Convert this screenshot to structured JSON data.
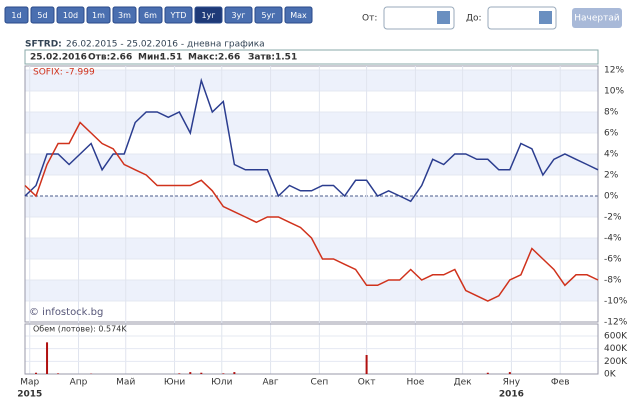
{
  "toolbar": {
    "ranges": [
      "1d",
      "5d",
      "10d",
      "1m",
      "3m",
      "6m",
      "YTD",
      "1уг",
      "3уг",
      "5уг",
      "Мах"
    ],
    "active": "1уг",
    "from_label": "От:",
    "to_label": "До:",
    "submit": "Начертай"
  },
  "header": {
    "symbol": "SFTRD:",
    "period": "26.02.2015 - 25.02.2016 - дневна графика",
    "date": "25.02.2016",
    "open_label": "Отв:",
    "open": "2.66",
    "min_label": "Мин:",
    "min": "1.51",
    "max_label": "Макс:",
    "max": "2.66",
    "close_label": "Затв:",
    "close": "1.51"
  },
  "watermark": "© infostock.bg",
  "chart_data": {
    "type": "line",
    "x": [
      "26.02.2015",
      "05.03.2015",
      "12.03.2015",
      "19.03.2015",
      "26.03.2015",
      "02.04.2015",
      "09.04.2015",
      "16.04.2015",
      "23.04.2015",
      "30.04.2015",
      "07.05.2015",
      "14.05.2015",
      "21.05.2015",
      "28.05.2015",
      "04.06.2015",
      "11.06.2015",
      "18.06.2015",
      "25.06.2015",
      "02.07.2015",
      "09.07.2015",
      "16.07.2015",
      "23.07.2015",
      "30.07.2015",
      "06.08.2015",
      "13.08.2015",
      "20.08.2015",
      "27.08.2015",
      "03.09.2015",
      "10.09.2015",
      "17.09.2015",
      "24.09.2015",
      "01.10.2015",
      "08.10.2015",
      "15.10.2015",
      "22.10.2015",
      "29.10.2015",
      "05.11.2015",
      "12.11.2015",
      "19.11.2015",
      "26.11.2015",
      "03.12.2015",
      "10.12.2015",
      "17.12.2015",
      "24.12.2015",
      "31.12.2015",
      "07.01.2016",
      "14.01.2016",
      "21.01.2016",
      "28.01.2016",
      "04.02.2016",
      "11.02.2016",
      "18.02.2016",
      "25.02.2016"
    ],
    "xlim": [
      "26.02.2015",
      "25.02.2016"
    ],
    "xticks": [
      {
        "value": "01.03.2015",
        "label": "Мар"
      },
      {
        "value": "01.04.2015",
        "label": "Апр"
      },
      {
        "value": "01.05.2015",
        "label": "Май"
      },
      {
        "value": "01.06.2015",
        "label": "Юни"
      },
      {
        "value": "01.07.2015",
        "label": "Юли"
      },
      {
        "value": "01.08.2015",
        "label": "Авг"
      },
      {
        "value": "01.09.2015",
        "label": "Сеп"
      },
      {
        "value": "01.10.2015",
        "label": "Окт"
      },
      {
        "value": "01.11.2015",
        "label": "Ное"
      },
      {
        "value": "01.12.2015",
        "label": "Дек"
      },
      {
        "value": "01.01.2016",
        "label": "Яну"
      },
      {
        "value": "01.02.2016",
        "label": "Фев"
      }
    ],
    "year_ticks": [
      {
        "value": "01.03.2015",
        "label": "2015"
      },
      {
        "value": "01.01.2016",
        "label": "2016"
      }
    ],
    "ylim": [
      -12,
      12
    ],
    "yticks": [
      {
        "value": 12,
        "label": "12%"
      },
      {
        "value": 10,
        "label": "10%"
      },
      {
        "value": 8,
        "label": "8%"
      },
      {
        "value": 6,
        "label": "6%"
      },
      {
        "value": 4,
        "label": "4%"
      },
      {
        "value": 2,
        "label": "2%"
      },
      {
        "value": 0,
        "label": "0%"
      },
      {
        "value": -2,
        "label": "-2%"
      },
      {
        "value": -4,
        "label": "-4%"
      },
      {
        "value": -6,
        "label": "-6%"
      },
      {
        "value": -8,
        "label": "-8%"
      },
      {
        "value": -10,
        "label": "-10%"
      },
      {
        "value": -12,
        "label": "-12%"
      }
    ],
    "series": [
      {
        "color": "#2b3d8f",
        "values": [
          0,
          1,
          4,
          4,
          3,
          4,
          5,
          2.5,
          4,
          4,
          7,
          8,
          8,
          7.5,
          8,
          6,
          11,
          8,
          9,
          3,
          2.5,
          2.5,
          2.5,
          0,
          1,
          0.5,
          0.5,
          1,
          1,
          0,
          1.5,
          1.5,
          0,
          0.5,
          0,
          -0.5,
          1,
          3.5,
          3,
          4,
          4,
          3.5,
          3.5,
          2.5,
          2.5,
          5,
          4.5,
          2,
          3.5,
          4,
          3.5,
          3,
          2.5
        ]
      },
      {
        "name": "SOFIX: -7.999",
        "color": "#d0321c",
        "values": [
          1,
          0,
          3,
          5,
          5,
          7,
          6,
          5,
          4.5,
          3,
          2.5,
          2,
          1,
          1,
          1,
          1,
          1.5,
          0.5,
          -1,
          -1.5,
          -2,
          -2.5,
          -2,
          -2,
          -2.5,
          -3,
          -4,
          -6,
          -6,
          -6.5,
          -7,
          -8.5,
          -8.5,
          -8,
          -8,
          -7,
          -8,
          -7.5,
          -7.5,
          -7,
          -9,
          -9.5,
          -10,
          -9.5,
          -8,
          -7.5,
          -5,
          -6,
          -7,
          -8.5,
          -7.5,
          -7.5,
          -8
        ]
      }
    ],
    "volume": {
      "label": "Обем (лотове): 0.574K",
      "color": "#b01010",
      "values": [
        0,
        20000,
        500000,
        10000,
        0,
        0,
        5000,
        0,
        0,
        0,
        0,
        0,
        0,
        0,
        10000,
        30000,
        20000,
        0,
        10000,
        30000,
        0,
        0,
        0,
        0,
        0,
        0,
        0,
        0,
        0,
        0,
        0,
        300000,
        0,
        0,
        0,
        0,
        0,
        0,
        0,
        0,
        0,
        0,
        20000,
        0,
        30000,
        0,
        0,
        0,
        0,
        0,
        0,
        0,
        0
      ],
      "ylim": [
        0,
        600000
      ],
      "yticks": [
        {
          "value": 600000,
          "label": "600K"
        },
        {
          "value": 400000,
          "label": "400K"
        },
        {
          "value": 200000,
          "label": "200K"
        },
        {
          "value": 0,
          "label": "0K"
        }
      ]
    },
    "grid": true
  }
}
